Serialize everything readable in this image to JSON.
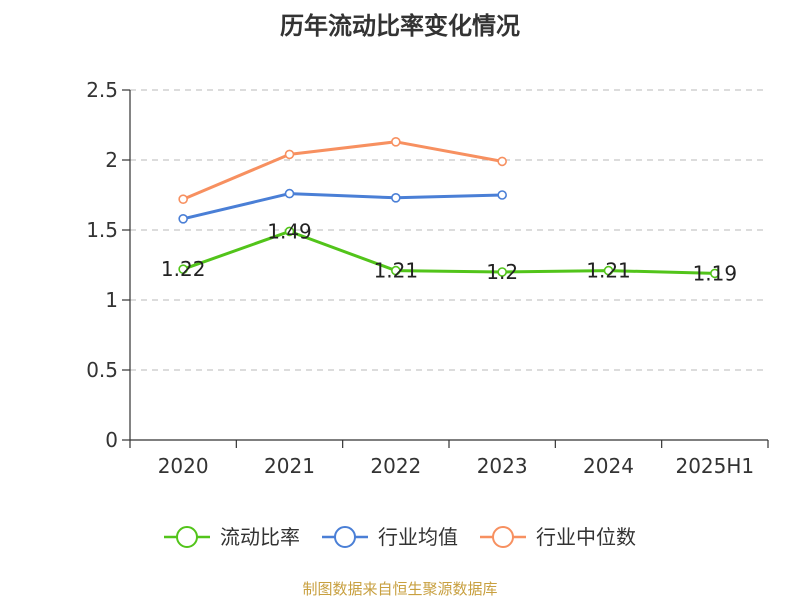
{
  "chart_data": {
    "type": "line",
    "title": "历年流动比率变化情况",
    "categories": [
      "2020",
      "2021",
      "2022",
      "2023",
      "2024",
      "2025H1"
    ],
    "ylim": [
      0,
      2.5
    ],
    "yticks": [
      "0",
      "0.5",
      "1",
      "1.5",
      "2",
      "2.5"
    ],
    "grid": true,
    "legend": "bottom",
    "series": [
      {
        "name": "流动比率",
        "color": "#52c41a",
        "values": [
          1.22,
          1.49,
          1.21,
          1.2,
          1.21,
          1.19
        ],
        "labels": [
          "1.22",
          "1.49",
          "1.21",
          "1.2",
          "1.21",
          "1.19"
        ]
      },
      {
        "name": "行业均值",
        "color": "#4a7fd6",
        "values": [
          1.58,
          1.76,
          1.73,
          1.75,
          null,
          null
        ]
      },
      {
        "name": "行业中位数",
        "color": "#f79060",
        "values": [
          1.72,
          2.04,
          2.13,
          1.99,
          null,
          null
        ]
      }
    ]
  },
  "source": "制图数据来自恒生聚源数据库"
}
